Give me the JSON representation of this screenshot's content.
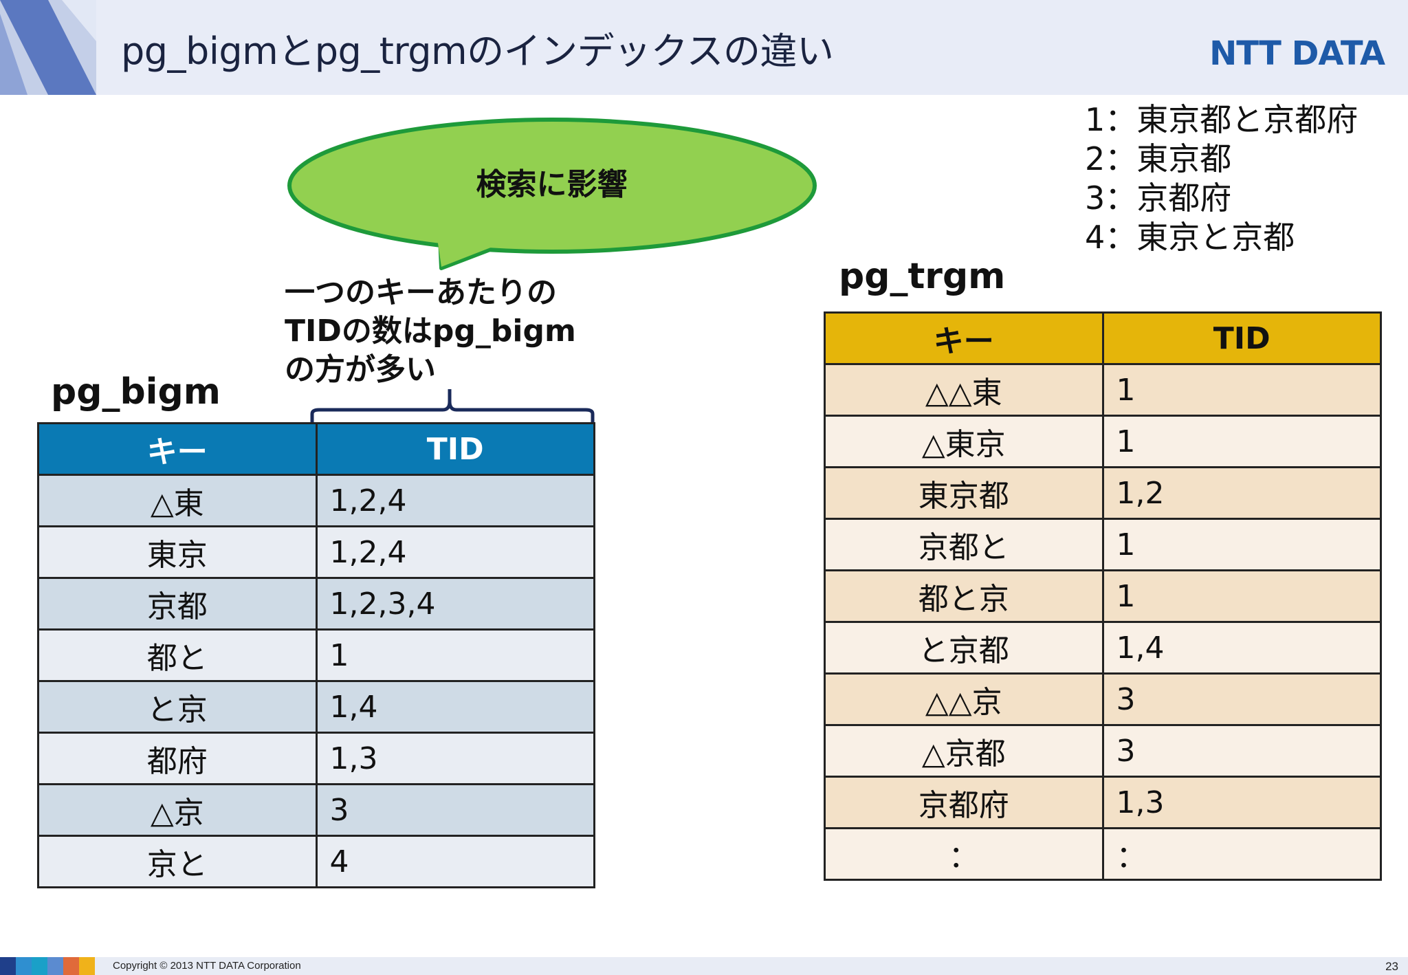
{
  "header": {
    "title": "pg_bigmとpg_trgmのインデックスの違い",
    "logo_text": "NTT DATA",
    "accent_color": "#1e5aa8"
  },
  "legend": [
    "1：東京都と京都府",
    "2：東京都",
    "3：京都府",
    "4：東京と京都"
  ],
  "bubble": {
    "text": "検索に影響",
    "fill": "#92d050",
    "stroke": "#1e9a3a"
  },
  "note": {
    "lines": [
      "一つのキーあたりの",
      "TIDの数はpg_bigm",
      "の方が多い"
    ]
  },
  "pg_bigm": {
    "title": "pg_bigm",
    "header_color": "#0a7ab4",
    "columns": [
      "キー",
      "TID"
    ],
    "rows": [
      {
        "key": "△東",
        "tid": "1,2,4"
      },
      {
        "key": "東京",
        "tid": "1,2,4"
      },
      {
        "key": "京都",
        "tid": "1,2,3,4"
      },
      {
        "key": "都と",
        "tid": "1"
      },
      {
        "key": "と京",
        "tid": "1,4"
      },
      {
        "key": "都府",
        "tid": "1,3"
      },
      {
        "key": "△京",
        "tid": "3"
      },
      {
        "key": "京と",
        "tid": "4"
      }
    ]
  },
  "pg_trgm": {
    "title": "pg_trgm",
    "header_color": "#e5b50a",
    "columns": [
      "キー",
      "TID"
    ],
    "rows": [
      {
        "key": "△△東",
        "tid": "1"
      },
      {
        "key": "△東京",
        "tid": "1"
      },
      {
        "key": "東京都",
        "tid": "1,2"
      },
      {
        "key": "京都と",
        "tid": "1"
      },
      {
        "key": "都と京",
        "tid": "1"
      },
      {
        "key": "と京都",
        "tid": "1,4"
      },
      {
        "key": "△△京",
        "tid": "3"
      },
      {
        "key": "△京都",
        "tid": "3"
      },
      {
        "key": "京都府",
        "tid": "1,3"
      },
      {
        "key": "：",
        "tid": "："
      }
    ]
  },
  "footer": {
    "copyright": "Copyright © 2013 NTT DATA Corporation",
    "page_number": "23"
  }
}
